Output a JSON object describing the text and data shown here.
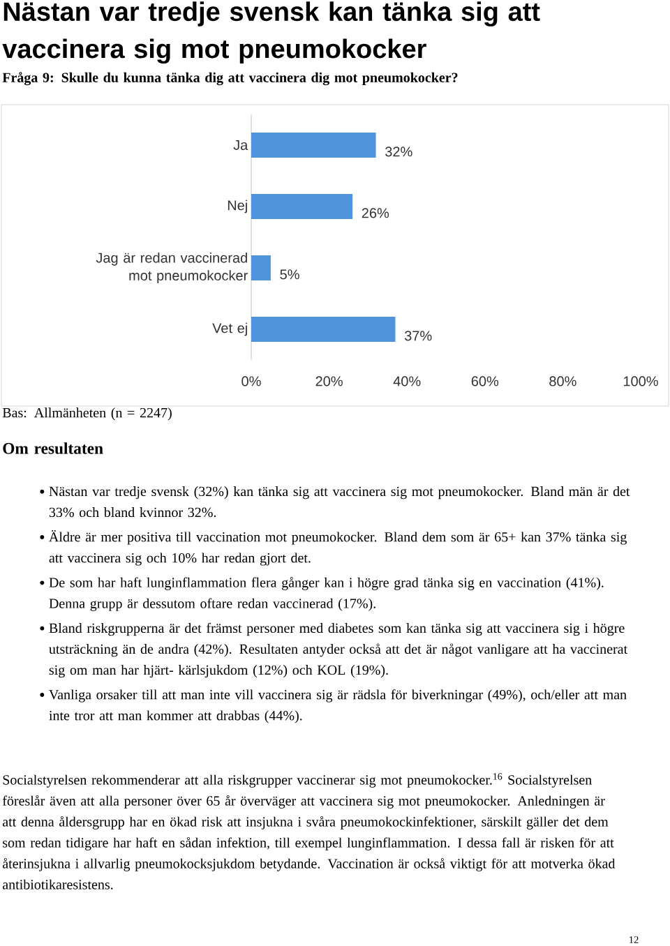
{
  "chart_data": {
    "type": "bar",
    "orientation": "horizontal",
    "title": "Nästan var tredje svensk kan tänka sig att vaccinera sig mot pneumokocker",
    "subtitle": "Fråga 9: Skulle du kunna tänka dig att vaccinera dig mot pneumokocker?",
    "categories": [
      "Ja",
      "Nej",
      "Jag är redan vaccinerad mot pneumokocker",
      "Vet ej"
    ],
    "values": [
      32,
      26,
      5,
      37
    ],
    "value_labels": [
      "32%",
      "26%",
      "5%",
      "37%"
    ],
    "color": "#4f94dc",
    "xlim": [
      0,
      100
    ],
    "xticks": [
      {
        "value": 0,
        "label": "0%"
      },
      {
        "value": 20,
        "label": "20%"
      },
      {
        "value": 40,
        "label": "40%"
      },
      {
        "value": 60,
        "label": "60%"
      },
      {
        "value": 80,
        "label": "80%"
      },
      {
        "value": 100,
        "label": "100%"
      }
    ],
    "annotations": [
      "Bas: Allmänheten (n = 2247)",
      "Om resultaten",
      "Nästan var tredje svensk (32%) kan tänka sig att vaccinera sig mot pneumokocker. Bland män är det 33% och bland kvinnor 32%.",
      "Äldre är mer positiva till vaccination mot pneumokocker. Bland dem som är 65+ kan 37% tänka sig att vaccinera sig och 10% har redan gjort det.",
      "De som har haft lunginflammation flera gånger kan i högre grad tänka sig en vaccination (41%). Denna grupp är dessutom oftare redan vaccinerad (17%).",
      "Bland riskgrupperna är det främst personer med diabetes som kan tänka sig att vaccinera sig i högre utsträckning än de andra (42%). Resultaten antyder också att det är något vanligare att ha vaccinerat sig om man har hjärt- kärlsjukdom (12%) och KOL (19%).",
      "Vanliga orsaker till att man inte vill vaccinera sig är rädsla för biverkningar (49%), och/eller att man inte tror att man kommer att drabbas (44%).",
      "Socialstyrelsen rekommenderar att alla riskgrupper vaccinerar sig mot pneumokocker.$^{16}$ Socialstyrelsen föreslår även att alla personer över 65 år överväger att vaccinera sig mot pneumokocker. Anledningen är att denna åldersgrupp har en ökad risk att insjukna i svåra pneumokockinfektioner, särskilt gäller det dem som redan tidigare har haft en sådan infektion, till exempel lunginflammation. I dessa fall är risken för att återinsjukna i allvarlig pneumokocksjukdom betydande. Vaccination är också viktigt för att motverka ökad antibiotikaresistens.",
      "12"
    ]
  }
}
